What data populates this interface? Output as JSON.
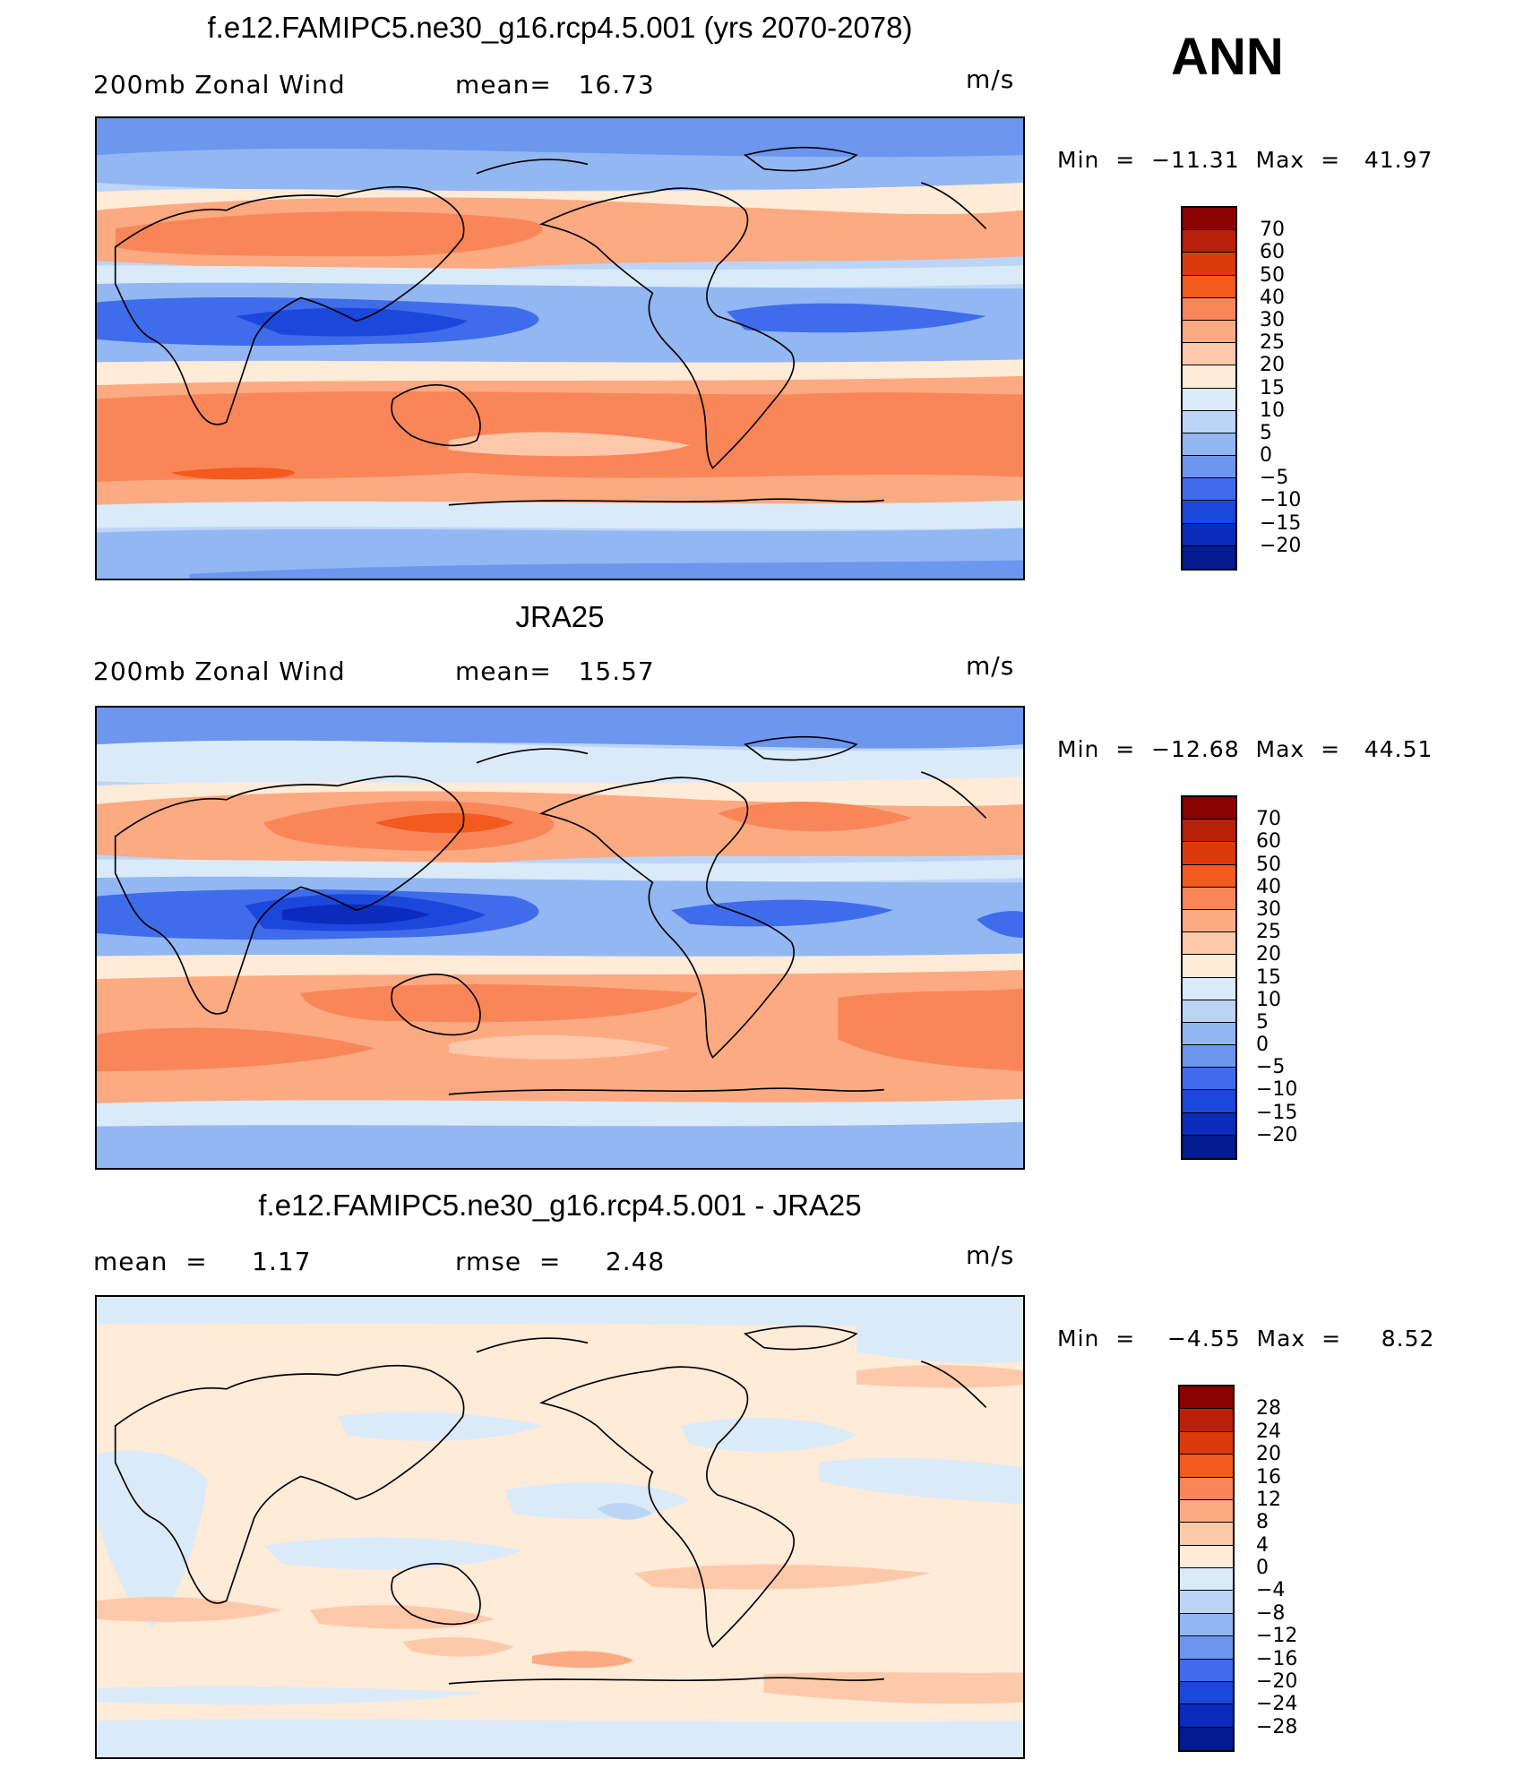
{
  "header": {
    "season": "ANN",
    "units": "m/s"
  },
  "panels": [
    {
      "title": "f.e12.FAMIPC5.ne30_g16.rcp4.5.001 (yrs 2070-2078)",
      "left": "200mb Zonal Wind",
      "center": "mean=   16.73",
      "units": "m/s",
      "minmax": "Min  =  −11.31  Max  =   41.97"
    },
    {
      "title": "JRA25",
      "left": "200mb Zonal Wind",
      "center": "mean=   15.57",
      "units": "m/s",
      "minmax": "Min  =  −12.68  Max  =   44.51"
    },
    {
      "title": "f.e12.FAMIPC5.ne30_g16.rcp4.5.001 - JRA25",
      "left": "mean  =     1.17",
      "center": "rmse  =     2.48",
      "units": "m/s",
      "minmax": "Min  =    −4.55  Max  =     8.52"
    }
  ],
  "colorbars": [
    {
      "labels": [
        "70",
        "60",
        "50",
        "40",
        "30",
        "25",
        "20",
        "15",
        "10",
        "5",
        "0",
        "−5",
        "−10",
        "−15",
        "−20"
      ],
      "colors": [
        "#8b0000",
        "#b8200a",
        "#dc3a0c",
        "#f25a1e",
        "#f98659",
        "#fbaa82",
        "#fdc9aa",
        "#feebd8",
        "#dbeaf8",
        "#bcd5f7",
        "#93b7f3",
        "#6d96ee",
        "#3f6cea",
        "#1c47dc",
        "#0b2bbd",
        "#041a8f"
      ]
    },
    {
      "labels": [
        "70",
        "60",
        "50",
        "40",
        "30",
        "25",
        "20",
        "15",
        "10",
        "5",
        "0",
        "−5",
        "−10",
        "−15",
        "−20"
      ],
      "colors": [
        "#8b0000",
        "#b8200a",
        "#dc3a0c",
        "#f25a1e",
        "#f98659",
        "#fbaa82",
        "#fdc9aa",
        "#feebd8",
        "#dbeaf8",
        "#bcd5f7",
        "#93b7f3",
        "#6d96ee",
        "#3f6cea",
        "#1c47dc",
        "#0b2bbd",
        "#041a8f"
      ]
    },
    {
      "labels": [
        "28",
        "24",
        "20",
        "16",
        "12",
        "8",
        "4",
        "0",
        "−4",
        "−8",
        "−12",
        "−16",
        "−20",
        "−24",
        "−28"
      ],
      "colors": [
        "#8b0000",
        "#b8200a",
        "#dc3a0c",
        "#f25a1e",
        "#f98659",
        "#fbaa82",
        "#fdc9aa",
        "#feebd8",
        "#dbeaf8",
        "#bcd5f7",
        "#93b7f3",
        "#6d96ee",
        "#3f6cea",
        "#1c47dc",
        "#0b2bbd",
        "#041a8f"
      ]
    }
  ]
}
